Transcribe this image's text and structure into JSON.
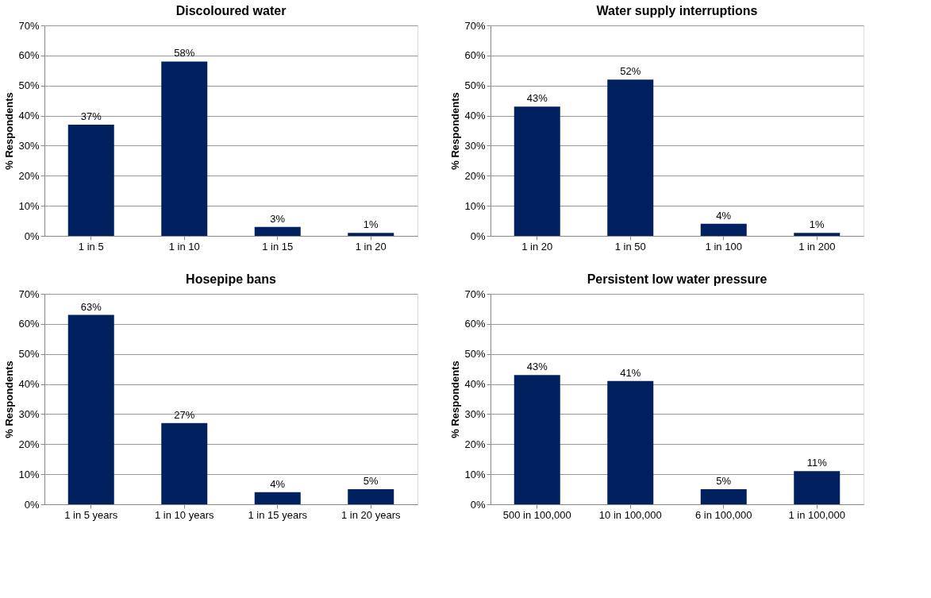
{
  "chart_data": [
    {
      "type": "bar",
      "title": "Discoloured water",
      "ylabel": "% Respondents",
      "categories": [
        "1 in 5",
        "1 in 10",
        "1 in 15",
        "1 in 20"
      ],
      "values": [
        37,
        58,
        3,
        1
      ],
      "value_labels": [
        "37%",
        "58%",
        "3%",
        "1%"
      ],
      "color": "#002060",
      "ylim": [
        0,
        70
      ],
      "yticks": [
        {
          "value": 0,
          "label": "0%"
        },
        {
          "value": 10,
          "label": "10%"
        },
        {
          "value": 20,
          "label": "20%"
        },
        {
          "value": 30,
          "label": "30%"
        },
        {
          "value": 40,
          "label": "40%"
        },
        {
          "value": 50,
          "label": "50%"
        },
        {
          "value": 60,
          "label": "60%"
        },
        {
          "value": 70,
          "label": "70%"
        }
      ],
      "grid": "y"
    },
    {
      "type": "bar",
      "title": "Water supply interruptions",
      "ylabel": "% Respondents",
      "categories": [
        "1 in 20",
        "1 in 50",
        "1 in 100",
        "1 in 200"
      ],
      "values": [
        43,
        52,
        4,
        1
      ],
      "value_labels": [
        "43%",
        "52%",
        "4%",
        "1%"
      ],
      "color": "#002060",
      "ylim": [
        0,
        70
      ],
      "yticks": [
        {
          "value": 0,
          "label": "0%"
        },
        {
          "value": 10,
          "label": "10%"
        },
        {
          "value": 20,
          "label": "20%"
        },
        {
          "value": 30,
          "label": "30%"
        },
        {
          "value": 40,
          "label": "40%"
        },
        {
          "value": 50,
          "label": "50%"
        },
        {
          "value": 60,
          "label": "60%"
        },
        {
          "value": 70,
          "label": "70%"
        }
      ],
      "grid": "y"
    },
    {
      "type": "bar",
      "title": "Hosepipe bans",
      "ylabel": "% Respondents",
      "categories": [
        "1 in 5 years",
        "1 in 10 years",
        "1 in 15 years",
        "1 in 20 years"
      ],
      "values": [
        63,
        27,
        4,
        5
      ],
      "value_labels": [
        "63%",
        "27%",
        "4%",
        "5%"
      ],
      "color": "#002060",
      "ylim": [
        0,
        70
      ],
      "yticks": [
        {
          "value": 0,
          "label": "0%"
        },
        {
          "value": 10,
          "label": "10%"
        },
        {
          "value": 20,
          "label": "20%"
        },
        {
          "value": 30,
          "label": "30%"
        },
        {
          "value": 40,
          "label": "40%"
        },
        {
          "value": 50,
          "label": "50%"
        },
        {
          "value": 60,
          "label": "60%"
        },
        {
          "value": 70,
          "label": "70%"
        }
      ],
      "grid": "y"
    },
    {
      "type": "bar",
      "title": "Persistent low water pressure",
      "ylabel": "% Respondents",
      "categories": [
        "500 in 100,000",
        "10 in 100,000",
        "6 in 100,000",
        "1 in 100,000"
      ],
      "values": [
        43,
        41,
        5,
        11
      ],
      "value_labels": [
        "43%",
        "41%",
        "5%",
        "11%"
      ],
      "color": "#002060",
      "ylim": [
        0,
        70
      ],
      "yticks": [
        {
          "value": 0,
          "label": "0%"
        },
        {
          "value": 10,
          "label": "10%"
        },
        {
          "value": 20,
          "label": "20%"
        },
        {
          "value": 30,
          "label": "30%"
        },
        {
          "value": 40,
          "label": "40%"
        },
        {
          "value": 50,
          "label": "50%"
        },
        {
          "value": 60,
          "label": "60%"
        },
        {
          "value": 70,
          "label": "70%"
        }
      ],
      "grid": "y"
    }
  ]
}
